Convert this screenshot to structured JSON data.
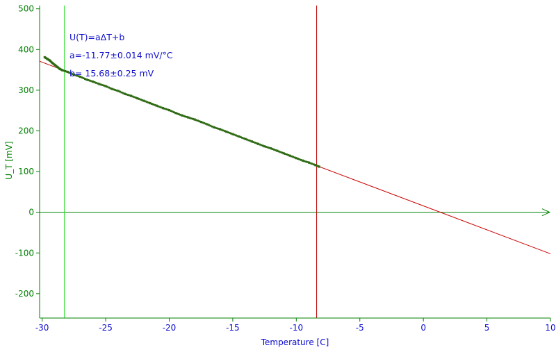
{
  "chart_data": {
    "type": "scatter",
    "xlabel": "Temperature [C]",
    "ylabel": "U_T [mV]",
    "xlim": [
      -30.2,
      10.0
    ],
    "ylim": [
      -260,
      508
    ],
    "x_ticks": [
      -30,
      -25,
      -20,
      -15,
      -10,
      -5,
      0,
      5,
      10
    ],
    "y_ticks": [
      500,
      400,
      300,
      200,
      100,
      0,
      -100,
      -200
    ],
    "grid": false,
    "annotations": [
      "U(T)=aΔT+b",
      "a=-11.77±0.014 mV/°C",
      "b= 15.68±0.25 mV"
    ],
    "fit": {
      "slope": -11.77,
      "intercept": 15.68,
      "x_range": [
        -30.2,
        10.0
      ]
    },
    "markers": {
      "green_vertical_x": -28.25,
      "red_vertical_x": -8.4
    },
    "series": [
      {
        "x": [
          -29.8,
          -29.6,
          -29.4,
          -29.2,
          -29.0,
          -28.8,
          -28.6,
          -28.4,
          -28.0,
          -27.5,
          -27.0,
          -26.5,
          -26.0,
          -25.5,
          -25.0,
          -24.5,
          -24.0,
          -23.5,
          -23.0,
          -22.5,
          -22.0,
          -21.5,
          -21.0,
          -20.5,
          -20.0,
          -19.5,
          -19.0,
          -18.5,
          -18.0,
          -17.5,
          -17.0,
          -16.5,
          -16.0,
          -15.5,
          -15.0,
          -14.5,
          -14.0,
          -13.5,
          -13.0,
          -12.5,
          -12.0,
          -11.5,
          -11.0,
          -10.5,
          -10.0,
          -9.5,
          -9.0,
          -8.5,
          -8.2
        ],
        "y": [
          381,
          377,
          373,
          367,
          362,
          357,
          352,
          349,
          345,
          338,
          333,
          326,
          321,
          315,
          310,
          303,
          298,
          291,
          286,
          280,
          274,
          268,
          262,
          256,
          251,
          244,
          238,
          233,
          228,
          222,
          216,
          209,
          204,
          198,
          192,
          186,
          180,
          174,
          168,
          162,
          157,
          151,
          145,
          139,
          133,
          127,
          122,
          116,
          112
        ],
        "color": "#2f6b14"
      }
    ],
    "colors": {
      "axis": "#008000",
      "x_axis_text": "#0a0ad0",
      "fit_line": "#cc0000",
      "vertical_green": "#22dd22",
      "vertical_red": "#bb0000",
      "zero_line": "#008000",
      "annotation": "#1010cc"
    }
  }
}
